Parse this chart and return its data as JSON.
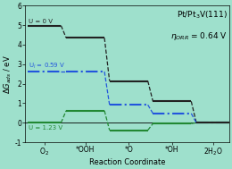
{
  "title_line1": "Pt/Pt$_3$V(111)",
  "title_line2": "$\\eta_{ORR}$ = 0.64 V",
  "ylabel": "$\\Delta G_{ads}$ / eV",
  "xlabel": "Reaction Coordinate",
  "xtick_labels": [
    "O$_2$",
    "*OOH",
    "*O",
    "*OH",
    "2H$_2$O"
  ],
  "xlim": [
    0,
    8
  ],
  "ylim": [
    -1,
    6
  ],
  "yticks": [
    -1,
    0,
    1,
    2,
    3,
    4,
    5,
    6
  ],
  "background_color": "#9ee0cc",
  "label_U0": "U = 0 V",
  "label_Ul": "U$_l$ = 0.59 V",
  "label_U123": "U = 1.23 V",
  "color_U0": "#222222",
  "color_Ul": "#2255dd",
  "color_U123": "#228833",
  "u0_y": [
    4.98,
    4.35,
    2.14,
    1.1,
    0.0
  ],
  "ul_y": [
    2.62,
    2.62,
    0.92,
    0.48,
    0.0
  ],
  "u3_y": [
    0.0,
    0.62,
    -0.38,
    -0.04,
    0.0
  ],
  "seg_x": [
    0.1,
    1.4,
    1.6,
    3.1,
    3.3,
    4.8,
    5.0,
    6.5,
    6.7,
    8.0
  ]
}
